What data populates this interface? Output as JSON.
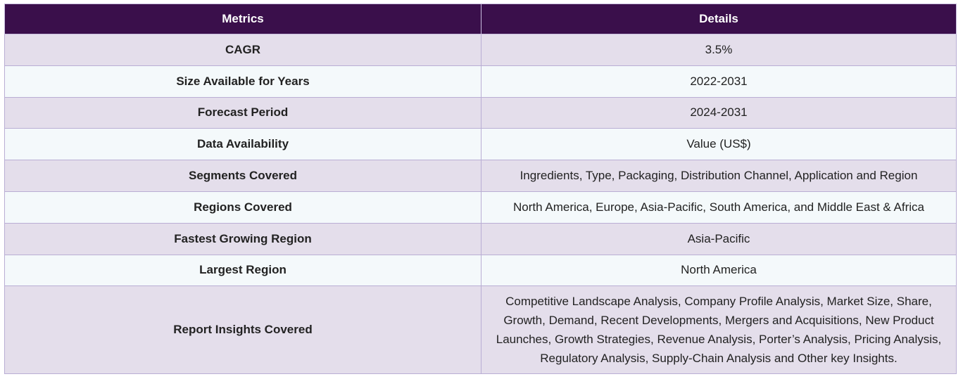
{
  "table": {
    "headers": [
      "Metrics",
      "Details"
    ],
    "rows": [
      {
        "metric": "CAGR",
        "detail": "3.5%"
      },
      {
        "metric": "Size Available for Years",
        "detail": "2022-2031"
      },
      {
        "metric": "Forecast Period",
        "detail": "2024-2031"
      },
      {
        "metric": "Data Availability",
        "detail": "Value (US$)"
      },
      {
        "metric": "Segments Covered",
        "detail": "Ingredients, Type, Packaging, Distribution Channel, Application and Region"
      },
      {
        "metric": "Regions Covered",
        "detail": "North America, Europe, Asia-Pacific, South America, and Middle East & Africa"
      },
      {
        "metric": "Fastest Growing Region",
        "detail": "Asia-Pacific"
      },
      {
        "metric": "Largest Region",
        "detail": "North America"
      },
      {
        "metric": "Report Insights Covered",
        "detail": "Competitive Landscape Analysis, Company Profile Analysis, Market Size, Share, Growth, Demand, Recent Developments, Mergers and Acquisitions, New Product Launches, Growth Strategies, Revenue Analysis, Porter’s Analysis, Pricing Analysis, Regulatory Analysis, Supply-Chain Analysis and Other key Insights."
      }
    ]
  },
  "colors": {
    "header_bg": "#3a0f4b",
    "row_odd_bg": "#e4deeb",
    "row_even_bg": "#f4f9fb",
    "border": "#b9aed4"
  }
}
